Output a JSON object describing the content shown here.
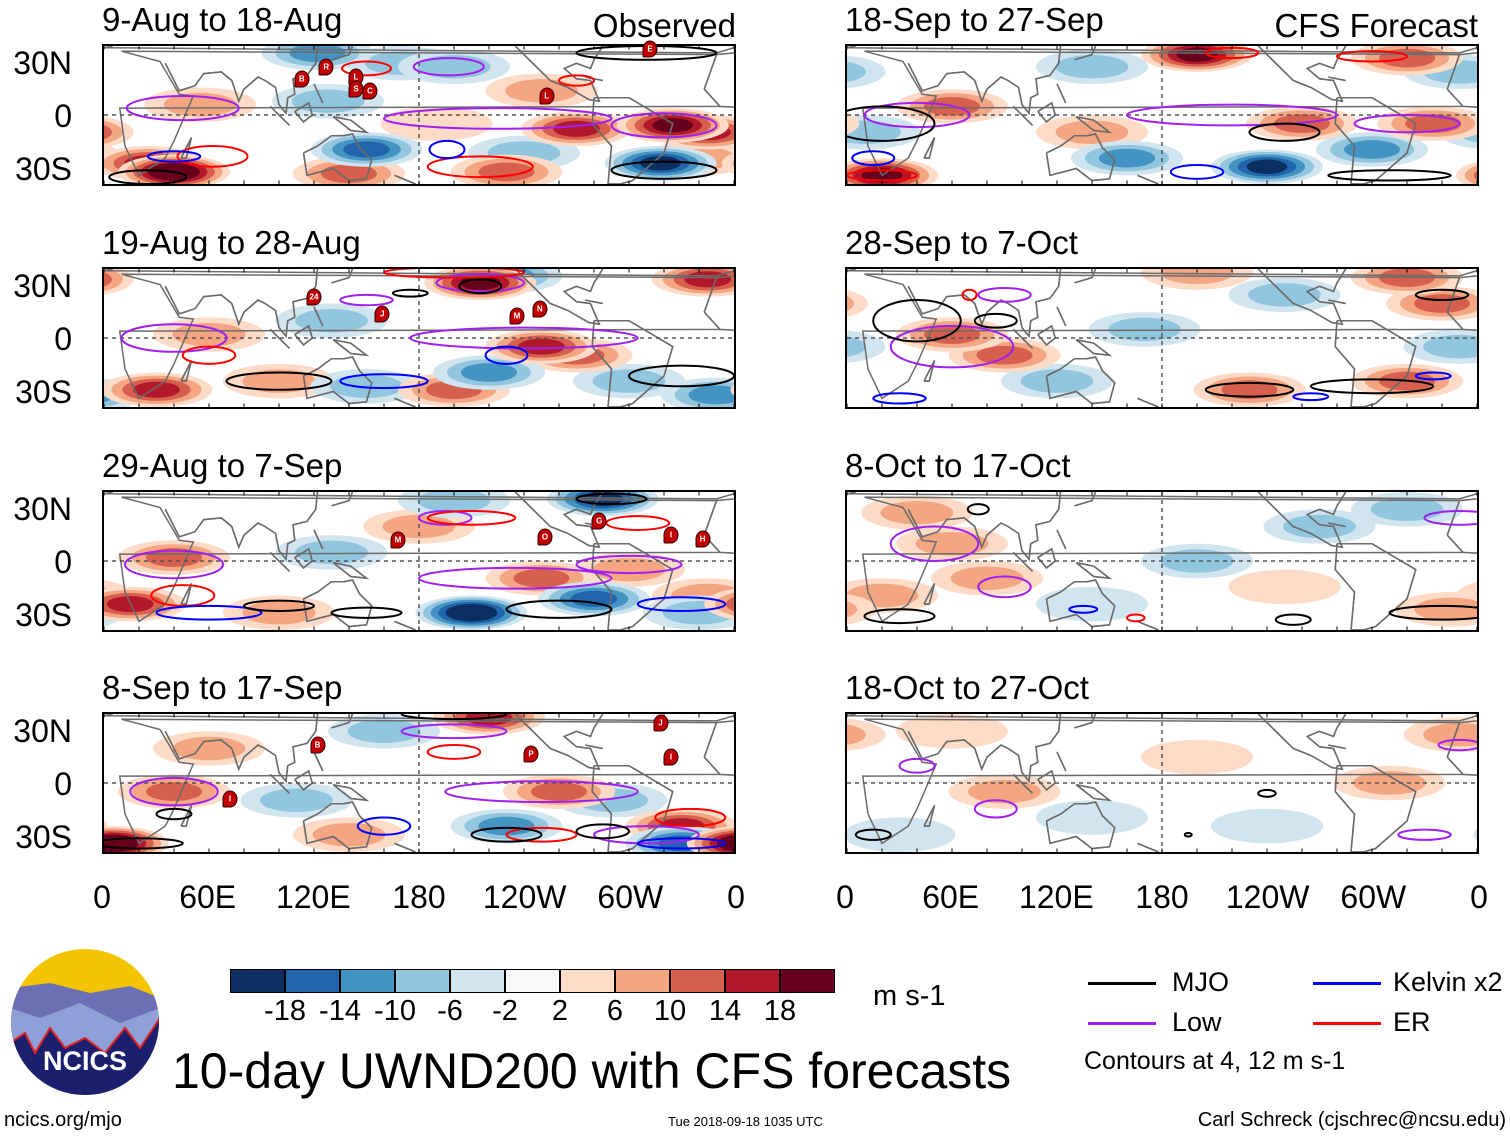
{
  "header": {
    "observed_label": "Observed",
    "forecast_label": "CFS Forecast"
  },
  "panels": [
    {
      "title": "9-Aug to 18-Aug",
      "column": "observed",
      "anomalies": [
        [
          40,
          -33,
          22
        ],
        [
          25,
          -28,
          14
        ],
        [
          140,
          -34,
          12
        ],
        [
          230,
          -33,
          10
        ],
        [
          270,
          -8,
          14
        ],
        [
          325,
          -6,
          18
        ],
        [
          345,
          -10,
          14
        ],
        [
          55,
          6,
          8
        ],
        [
          250,
          14,
          6
        ],
        [
          190,
          -5,
          4
        ],
        [
          -20,
          -25,
          6
        ]
      ],
      "negatives": [
        [
          150,
          -20,
          -14
        ],
        [
          128,
          8,
          -8
        ],
        [
          318,
          -28,
          -20
        ],
        [
          200,
          28,
          -8
        ],
        [
          122,
          36,
          -12
        ],
        [
          240,
          -22,
          -8
        ],
        [
          170,
          30,
          -6
        ]
      ],
      "contours": [
        [
          "Low",
          45,
          4,
          32,
          7
        ],
        [
          "Low",
          225,
          -2,
          65,
          6
        ],
        [
          "Low",
          320,
          -6,
          30,
          7
        ],
        [
          "Low",
          197,
          28,
          20,
          5
        ],
        [
          "ER",
          62,
          -24,
          20,
          6
        ],
        [
          "ER",
          150,
          27,
          14,
          4
        ],
        [
          "ER",
          215,
          -30,
          30,
          6
        ],
        [
          "ER",
          270,
          20,
          10,
          3
        ],
        [
          "Kelvin",
          196,
          -20,
          10,
          5
        ],
        [
          "Kelvin",
          40,
          -24,
          15,
          3
        ],
        [
          "MJO",
          25,
          -36,
          22,
          4
        ],
        [
          "MJO",
          320,
          -32,
          30,
          5
        ],
        [
          "MJO",
          310,
          36,
          40,
          4
        ]
      ],
      "storms": [
        [
          "B",
          113,
          21
        ],
        [
          "R",
          127,
          28
        ],
        [
          "L",
          144,
          22
        ],
        [
          "S",
          144,
          15
        ],
        [
          "C",
          152,
          14
        ],
        [
          "L",
          253,
          11
        ],
        [
          "E",
          312,
          38
        ]
      ]
    },
    {
      "title": "19-Aug to 28-Aug",
      "column": "observed",
      "anomalies": [
        [
          30,
          -30,
          14
        ],
        [
          60,
          2,
          8
        ],
        [
          250,
          -5,
          14
        ],
        [
          200,
          -30,
          10
        ],
        [
          215,
          32,
          18
        ],
        [
          345,
          34,
          14
        ],
        [
          270,
          -10,
          10
        ],
        [
          100,
          -25,
          6
        ]
      ],
      "negatives": [
        [
          130,
          10,
          -8
        ],
        [
          220,
          -20,
          -12
        ],
        [
          350,
          -33,
          -10
        ],
        [
          230,
          36,
          -12
        ],
        [
          300,
          -25,
          -8
        ],
        [
          150,
          -28,
          -6
        ]
      ],
      "contours": [
        [
          "Low",
          40,
          0,
          30,
          8
        ],
        [
          "Low",
          240,
          0,
          65,
          6
        ],
        [
          "Low",
          215,
          32,
          25,
          5
        ],
        [
          "Low",
          150,
          22,
          15,
          3
        ],
        [
          "ER",
          200,
          38,
          40,
          3
        ],
        [
          "ER",
          60,
          -10,
          15,
          5
        ],
        [
          "Kelvin",
          230,
          -10,
          12,
          5
        ],
        [
          "Kelvin",
          160,
          -25,
          25,
          4
        ],
        [
          "MJO",
          100,
          -25,
          30,
          5
        ],
        [
          "MJO",
          215,
          30,
          12,
          4
        ],
        [
          "MJO",
          330,
          -22,
          30,
          6
        ],
        [
          "MJO",
          175,
          26,
          10,
          2
        ]
      ],
      "storms": [
        [
          "24",
          120,
          24
        ],
        [
          "J",
          159,
          14
        ],
        [
          "M",
          236,
          13
        ],
        [
          "N",
          249,
          17
        ]
      ]
    },
    {
      "title": "29-Aug to 7-Sep",
      "column": "observed",
      "anomalies": [
        [
          40,
          2,
          12
        ],
        [
          15,
          -25,
          14
        ],
        [
          250,
          -10,
          10
        ],
        [
          300,
          -5,
          8
        ],
        [
          180,
          20,
          6
        ],
        [
          345,
          -20,
          8
        ],
        [
          100,
          -30,
          6
        ]
      ],
      "negatives": [
        [
          210,
          -30,
          -22
        ],
        [
          280,
          -22,
          -14
        ],
        [
          130,
          5,
          -6
        ],
        [
          285,
          36,
          -18
        ],
        [
          340,
          -30,
          -8
        ],
        [
          200,
          35,
          -6
        ]
      ],
      "contours": [
        [
          "Low",
          40,
          -2,
          28,
          8
        ],
        [
          "Low",
          235,
          -10,
          55,
          6
        ],
        [
          "Low",
          300,
          -2,
          30,
          5
        ],
        [
          "Low",
          195,
          25,
          15,
          4
        ],
        [
          "ER",
          45,
          -20,
          18,
          6
        ],
        [
          "ER",
          210,
          25,
          25,
          4
        ],
        [
          "ER",
          305,
          22,
          18,
          4
        ],
        [
          "Kelvin",
          60,
          -30,
          30,
          4
        ],
        [
          "Kelvin",
          330,
          -25,
          25,
          4
        ],
        [
          "MJO",
          260,
          -28,
          30,
          5
        ],
        [
          "MJO",
          150,
          -30,
          20,
          3
        ],
        [
          "MJO",
          100,
          -26,
          20,
          3
        ],
        [
          "MJO",
          290,
          36,
          20,
          3
        ]
      ],
      "storms": [
        [
          "M",
          168,
          12
        ],
        [
          "O",
          252,
          14
        ],
        [
          "G",
          283,
          23
        ],
        [
          "I",
          324,
          15
        ],
        [
          "H",
          342,
          13
        ]
      ]
    },
    {
      "title": "8-Sep to 17-Sep",
      "column": "observed",
      "anomalies": [
        [
          40,
          -5,
          10
        ],
        [
          5,
          -35,
          22
        ],
        [
          260,
          -5,
          10
        ],
        [
          330,
          -25,
          14
        ],
        [
          220,
          38,
          14
        ],
        [
          140,
          -30,
          6
        ],
        [
          60,
          20,
          6
        ]
      ],
      "negatives": [
        [
          110,
          -10,
          -6
        ],
        [
          230,
          -25,
          -12
        ],
        [
          330,
          -35,
          -14
        ],
        [
          290,
          -10,
          -6
        ],
        [
          160,
          30,
          -6
        ]
      ],
      "contours": [
        [
          "Low",
          40,
          -5,
          25,
          8
        ],
        [
          "Low",
          250,
          -5,
          55,
          6
        ],
        [
          "Low",
          310,
          -30,
          30,
          5
        ],
        [
          "Low",
          200,
          30,
          30,
          4
        ],
        [
          "ER",
          200,
          18,
          15,
          4
        ],
        [
          "ER",
          335,
          -20,
          20,
          5
        ],
        [
          "ER",
          250,
          -30,
          20,
          4
        ],
        [
          "Kelvin",
          160,
          -25,
          15,
          5
        ],
        [
          "Kelvin",
          330,
          -35,
          25,
          3
        ],
        [
          "MJO",
          20,
          -35,
          25,
          3
        ],
        [
          "MJO",
          230,
          -30,
          20,
          4
        ],
        [
          "MJO",
          285,
          -28,
          15,
          4
        ],
        [
          "MJO",
          200,
          40,
          30,
          3
        ],
        [
          "MJO",
          40,
          -18,
          10,
          3
        ]
      ],
      "storms": [
        [
          "B",
          122,
          22
        ],
        [
          "I",
          72,
          -9
        ],
        [
          "P",
          244,
          17
        ],
        [
          "J",
          318,
          35
        ],
        [
          "I",
          324,
          15
        ]
      ]
    },
    {
      "title": "18-Sep to 27-Sep",
      "column": "forecast",
      "anomalies": [
        [
          20,
          -35,
          18
        ],
        [
          60,
          5,
          10
        ],
        [
          260,
          -5,
          10
        ],
        [
          335,
          -5,
          12
        ],
        [
          200,
          35,
          18
        ],
        [
          320,
          33,
          10
        ],
        [
          140,
          -10,
          6
        ]
      ],
      "negatives": [
        [
          160,
          -25,
          -10
        ],
        [
          240,
          -30,
          -20
        ],
        [
          140,
          28,
          -8
        ],
        [
          300,
          -20,
          -10
        ],
        [
          350,
          25,
          -6
        ],
        [
          10,
          -10,
          -8
        ]
      ],
      "contours": [
        [
          "Low",
          40,
          0,
          30,
          7
        ],
        [
          "Low",
          220,
          0,
          60,
          6
        ],
        [
          "Low",
          320,
          -5,
          30,
          5
        ],
        [
          "ER",
          20,
          -35,
          20,
          3
        ],
        [
          "ER",
          220,
          36,
          15,
          3
        ],
        [
          "ER",
          300,
          34,
          20,
          3
        ],
        [
          "Kelvin",
          15,
          -25,
          12,
          4
        ],
        [
          "Kelvin",
          200,
          -33,
          15,
          4
        ],
        [
          "MJO",
          20,
          -5,
          30,
          10
        ],
        [
          "MJO",
          250,
          -10,
          20,
          5
        ],
        [
          "MJO",
          310,
          -35,
          35,
          3
        ]
      ],
      "storms": []
    },
    {
      "title": "28-Sep to 7-Oct",
      "column": "forecast",
      "anomalies": [
        [
          60,
          2,
          12
        ],
        [
          90,
          -10,
          10
        ],
        [
          230,
          -30,
          10
        ],
        [
          320,
          -25,
          10
        ],
        [
          340,
          20,
          10
        ],
        [
          200,
          38,
          8
        ],
        [
          320,
          35,
          10
        ]
      ],
      "negatives": [
        [
          170,
          5,
          -8
        ],
        [
          250,
          25,
          -8
        ],
        [
          350,
          -5,
          -6
        ],
        [
          120,
          -25,
          -6
        ]
      ],
      "contours": [
        [
          "Low",
          60,
          -5,
          35,
          12
        ],
        [
          "Low",
          90,
          25,
          15,
          4
        ],
        [
          "MJO",
          40,
          10,
          25,
          12
        ],
        [
          "MJO",
          85,
          10,
          12,
          4
        ],
        [
          "MJO",
          300,
          -28,
          35,
          4
        ],
        [
          "MJO",
          230,
          -30,
          25,
          4
        ],
        [
          "MJO",
          340,
          25,
          15,
          3
        ],
        [
          "Kelvin",
          30,
          -35,
          15,
          3
        ],
        [
          "Kelvin",
          265,
          -34,
          10,
          2
        ],
        [
          "Kelvin",
          335,
          -22,
          10,
          2
        ],
        [
          "ER",
          70,
          25,
          4,
          3
        ]
      ],
      "storms": []
    },
    {
      "title": "8-Oct to 17-Oct",
      "column": "forecast",
      "anomalies": [
        [
          60,
          10,
          8
        ],
        [
          80,
          -10,
          6
        ],
        [
          345,
          -28,
          8
        ],
        [
          20,
          -20,
          6
        ],
        [
          250,
          -15,
          4
        ],
        [
          40,
          28,
          6
        ]
      ],
      "negatives": [
        [
          200,
          0,
          -6
        ],
        [
          270,
          20,
          -6
        ],
        [
          140,
          -25,
          -4
        ],
        [
          320,
          30,
          -6
        ]
      ],
      "contours": [
        [
          "Low",
          50,
          10,
          25,
          10
        ],
        [
          "Low",
          90,
          -15,
          15,
          6
        ],
        [
          "Low",
          350,
          25,
          20,
          4
        ],
        [
          "MJO",
          340,
          -30,
          30,
          4
        ],
        [
          "MJO",
          255,
          -34,
          10,
          3
        ],
        [
          "MJO",
          30,
          -32,
          20,
          4
        ],
        [
          "MJO",
          75,
          30,
          6,
          3
        ],
        [
          "Kelvin",
          135,
          -28,
          8,
          2
        ],
        [
          "ER",
          165,
          -33,
          5,
          2
        ]
      ],
      "storms": []
    },
    {
      "title": "18-Oct to 27-Oct",
      "column": "forecast",
      "anomalies": [
        [
          90,
          -5,
          6
        ],
        [
          200,
          15,
          4
        ],
        [
          310,
          0,
          6
        ],
        [
          350,
          28,
          6
        ],
        [
          60,
          30,
          4
        ]
      ],
      "negatives": [
        [
          140,
          -20,
          -4
        ],
        [
          240,
          -25,
          -4
        ],
        [
          30,
          -30,
          -4
        ]
      ],
      "contours": [
        [
          "Low",
          85,
          -15,
          12,
          5
        ],
        [
          "Low",
          40,
          10,
          10,
          4
        ],
        [
          "Low",
          350,
          22,
          12,
          3
        ],
        [
          "Low",
          330,
          -30,
          15,
          3
        ],
        [
          "MJO",
          240,
          -6,
          5,
          2
        ],
        [
          "MJO",
          15,
          -30,
          10,
          3
        ],
        [
          "MJO",
          195,
          -30,
          2,
          1
        ]
      ],
      "storms": []
    }
  ],
  "lat_labels": [
    "30N",
    "0",
    "30S"
  ],
  "lon_labels": [
    "0",
    "60E",
    "120E",
    "180",
    "120W",
    "60W",
    "0"
  ],
  "colorbar": {
    "colors": [
      "#0b2f61",
      "#2166ac",
      "#4393c3",
      "#92c5de",
      "#d1e5f0",
      "#f8f8f8",
      "#fddbc7",
      "#f4a582",
      "#d6604d",
      "#b2182b",
      "#67001f"
    ],
    "labels": [
      "-18",
      "-14",
      "-10",
      "-6",
      "-2",
      "2",
      "6",
      "10",
      "14",
      "18"
    ],
    "units": "m s-1"
  },
  "legend": {
    "items": [
      {
        "label": "MJO",
        "color": "#000000"
      },
      {
        "label": "Kelvin x2",
        "color": "#0000ff"
      },
      {
        "label": "Low",
        "color": "#a020f0"
      },
      {
        "label": "ER",
        "color": "#ff0000"
      }
    ],
    "note": "Contours at 4, 12 m s-1"
  },
  "logo": {
    "text": "NCICS"
  },
  "footer": {
    "title": "10-day UWND200 with CFS forecasts",
    "url": "ncics.org/mjo",
    "timestamp": "Tue 2018-09-18 1035 UTC",
    "author": "Carl Schreck (cjschrec@ncsu.edu)"
  }
}
